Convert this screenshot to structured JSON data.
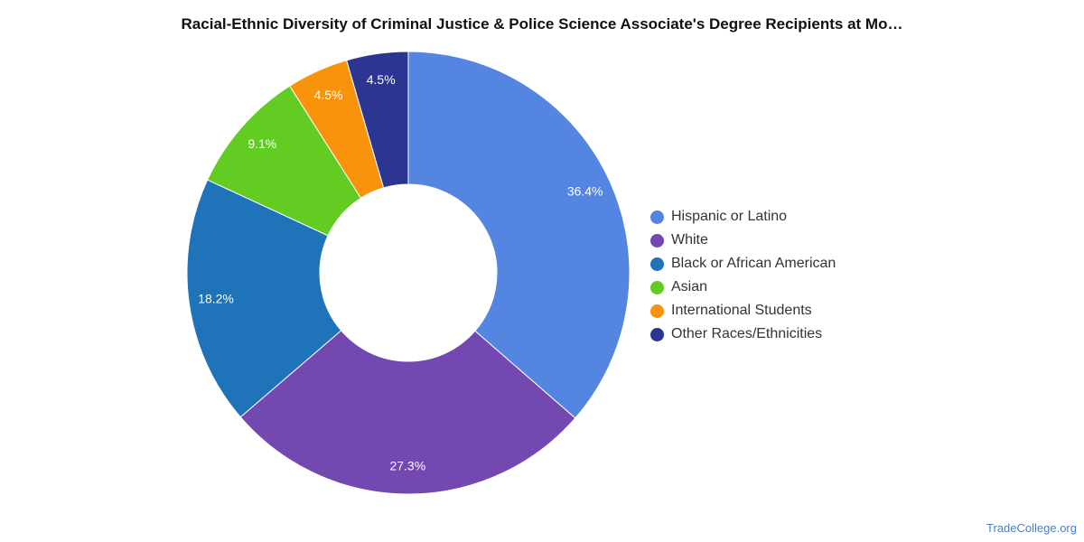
{
  "title": "Racial-Ethnic Diversity of Criminal Justice & Police Science Associate's Degree Recipients at Mo…",
  "source_credit": "TradeCollege.org",
  "chart_data": {
    "type": "pie",
    "variant": "donut",
    "title": "Racial-Ethnic Diversity of Criminal Justice & Police Science Associate's Degree Recipients at Mo…",
    "legend_position": "right",
    "slices": [
      {
        "label": "Hispanic or Latino",
        "value": 36.4,
        "display": "36.4%",
        "color": "#5486e1"
      },
      {
        "label": "White",
        "value": 27.3,
        "display": "27.3%",
        "color": "#7348b1"
      },
      {
        "label": "Black or African American",
        "value": 18.2,
        "display": "18.2%",
        "color": "#1f73b9"
      },
      {
        "label": "Asian",
        "value": 9.1,
        "display": "9.1%",
        "color": "#62cc23"
      },
      {
        "label": "International Students",
        "value": 4.5,
        "display": "4.5%",
        "color": "#f8930b"
      },
      {
        "label": "Other Races/Ethnicities",
        "value": 4.5,
        "display": "4.5%",
        "color": "#2c3591"
      }
    ]
  }
}
